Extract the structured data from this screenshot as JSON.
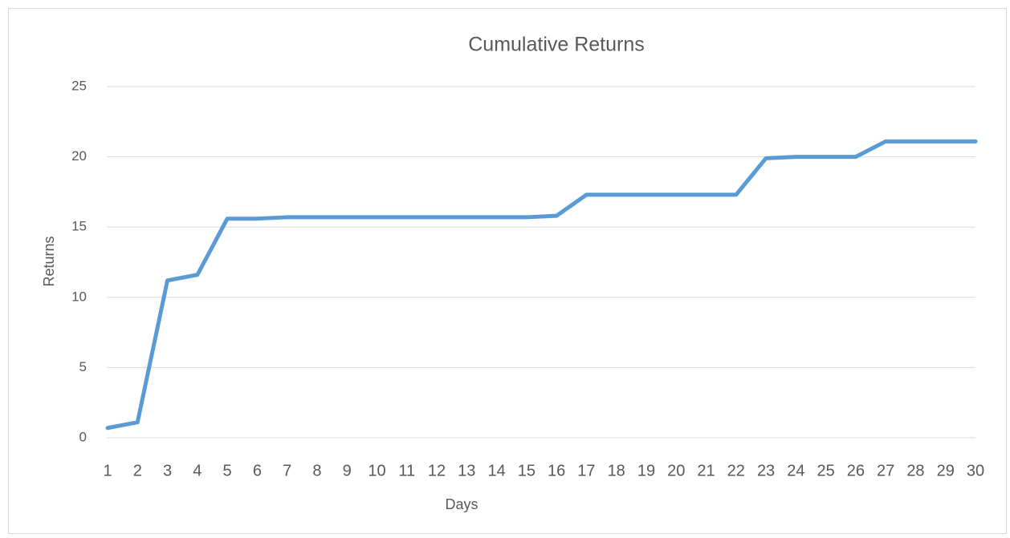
{
  "chart_data": {
    "type": "line",
    "title": "Cumulative Returns",
    "x_label": "Days",
    "y_label": "Returns",
    "categories": [
      "1",
      "2",
      "3",
      "4",
      "5",
      "6",
      "7",
      "8",
      "9",
      "10",
      "11",
      "12",
      "13",
      "14",
      "15",
      "16",
      "17",
      "18",
      "19",
      "20",
      "21",
      "22",
      "23",
      "24",
      "25",
      "26",
      "27",
      "28",
      "29",
      "30"
    ],
    "series": [
      {
        "name": "Returns",
        "color": "#5b9bd5",
        "values": [
          0.7,
          1.1,
          11.2,
          11.6,
          15.6,
          15.6,
          15.7,
          15.7,
          15.7,
          15.7,
          15.7,
          15.7,
          15.7,
          15.7,
          15.7,
          15.8,
          17.3,
          17.3,
          17.3,
          17.3,
          17.3,
          17.3,
          19.9,
          20,
          20,
          20,
          21.1,
          21.1,
          21.1,
          21.1
        ]
      }
    ],
    "ylim": [
      0,
      25
    ],
    "yticks": [
      0,
      5,
      10,
      15,
      20,
      25
    ],
    "grid": true
  }
}
